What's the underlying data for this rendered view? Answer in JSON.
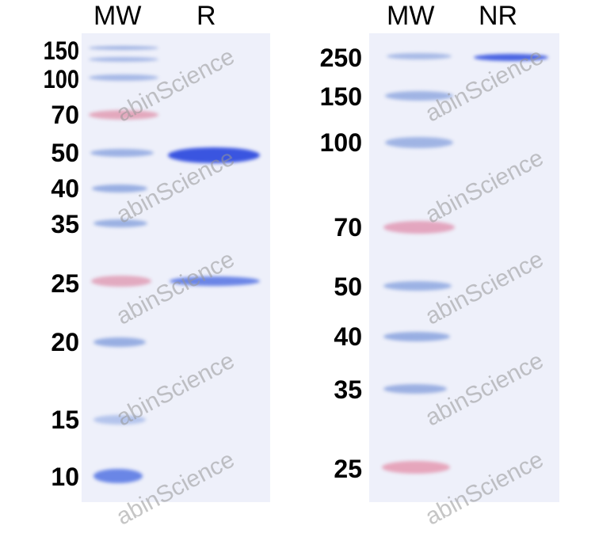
{
  "left_panel": {
    "lanes": [
      "MW",
      "R"
    ],
    "markers": [
      "150",
      "100",
      "70",
      "50",
      "40",
      "35",
      "25",
      "20",
      "15",
      "10"
    ]
  },
  "right_panel": {
    "lanes": [
      "MW",
      "NR"
    ],
    "markers": [
      "250",
      "150",
      "100",
      "70",
      "50",
      "40",
      "35",
      "25"
    ]
  },
  "watermark": "abinScience",
  "colors": {
    "gel": "#eef0fa",
    "ladder_blue": "#8fa8e0",
    "ladder_pink": "#e0a0b8",
    "sample_band": "#3a55e0"
  }
}
